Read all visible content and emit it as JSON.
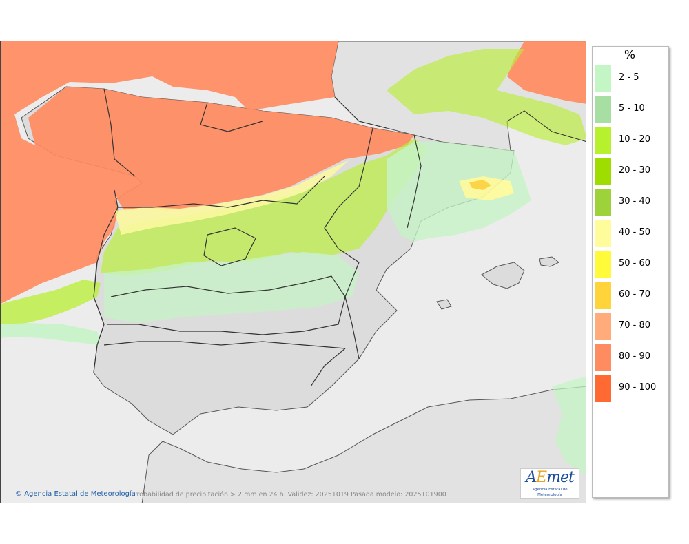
{
  "legend": {
    "title": "%",
    "items": [
      {
        "label": "2 - 5",
        "color": "#c4f5c4"
      },
      {
        "label": "5 - 10",
        "color": "#a7dfa2"
      },
      {
        "label": "10 - 20",
        "color": "#b7f02d"
      },
      {
        "label": "20 - 30",
        "color": "#9fdd00"
      },
      {
        "label": "30 - 40",
        "color": "#9ed23a"
      },
      {
        "label": "40 - 50",
        "color": "#fefc9b"
      },
      {
        "label": "50 - 60",
        "color": "#fffb3b"
      },
      {
        "label": "60 - 70",
        "color": "#ffd43a"
      },
      {
        "label": "70 - 80",
        "color": "#ffab7a"
      },
      {
        "label": "80 - 90",
        "color": "#ff8b60"
      },
      {
        "label": "90 - 100",
        "color": "#ff6a32"
      }
    ]
  },
  "map": {
    "credit": "Agencia Estatal de Meteorología",
    "caption": "Probabilidad de precipitación > 2 mm en 24 h. Validez: 20251019 Pasada modelo: 2025101900",
    "logo_text": "AEmet",
    "logo_subtitle": "Agencia Estatal de Meteorología",
    "land_color": "#dcdcdc",
    "sea_color": "#ececec"
  }
}
